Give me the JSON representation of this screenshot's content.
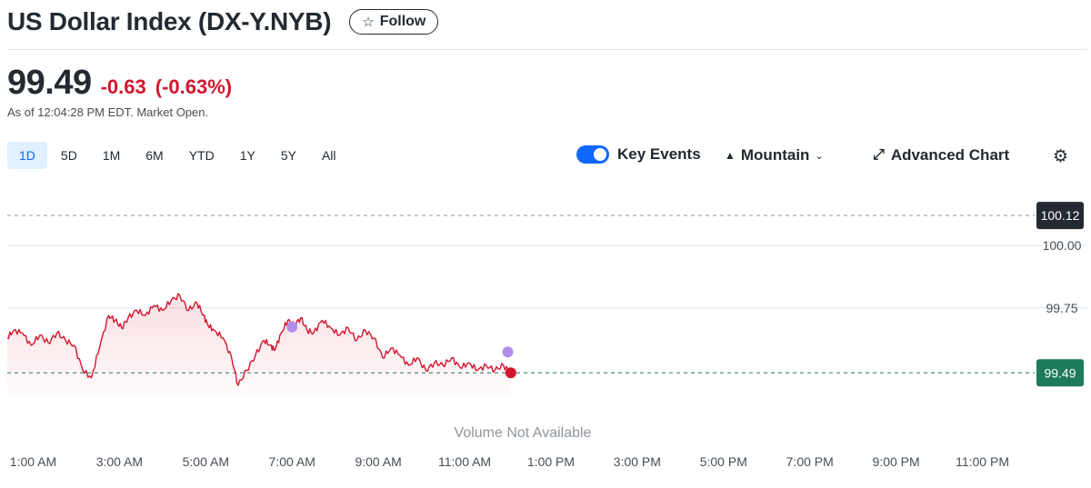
{
  "header": {
    "title": "US Dollar Index (DX-Y.NYB)",
    "follow_label": "Follow"
  },
  "quote": {
    "price": "99.49",
    "change": "-0.63",
    "change_pct": "(-0.63%)",
    "as_of": "As of 12:04:28 PM EDT. Market Open."
  },
  "range_tabs": [
    "1D",
    "5D",
    "1M",
    "6M",
    "YTD",
    "1Y",
    "5Y",
    "All"
  ],
  "active_range": "1D",
  "toolbar": {
    "key_events_label": "Key Events",
    "key_events_on": true,
    "chart_type_label": "Mountain",
    "advanced_chart_label": "Advanced Chart"
  },
  "colors": {
    "line": "#d3152e",
    "current_tag": "#1d7a5c",
    "high_tag": "#232a31",
    "event_dot": "#b28de8",
    "accent": "#0f69ff"
  },
  "chart_data": {
    "type": "area",
    "volume_note": "Volume Not Available",
    "x_tick_labels": [
      "1:00 AM",
      "3:00 AM",
      "5:00 AM",
      "7:00 AM",
      "9:00 AM",
      "11:00 AM",
      "1:00 PM",
      "3:00 PM",
      "5:00 PM",
      "7:00 PM",
      "9:00 PM",
      "11:00 PM"
    ],
    "x_tick_hours": [
      1,
      3,
      5,
      7,
      9,
      11,
      13,
      15,
      17,
      19,
      21,
      23
    ],
    "x_range_hours": [
      0.4,
      24
    ],
    "y_tick_labels": [
      "100.00",
      "99.75"
    ],
    "y_tick_values": [
      100.0,
      99.75
    ],
    "ylim": [
      99.4,
      100.175
    ],
    "reference_lines": [
      {
        "value": 100.12,
        "label": "100.12"
      },
      {
        "value": 99.49,
        "label": "99.49"
      }
    ],
    "series": [
      {
        "x": [
          0.4,
          0.55,
          0.75,
          0.95,
          1.15,
          1.35,
          1.55,
          1.75,
          1.95,
          2.15,
          2.35,
          2.55,
          2.75,
          2.9,
          3.05,
          3.2,
          3.4,
          3.6,
          3.8,
          4.0,
          4.2,
          4.4,
          4.6,
          4.8,
          4.95,
          5.05,
          5.2,
          5.4,
          5.6,
          5.75,
          5.95,
          6.15,
          6.35,
          6.5,
          6.6,
          6.75,
          6.9,
          7.05,
          7.2,
          7.35,
          7.5,
          7.7,
          7.9,
          8.1,
          8.3,
          8.5,
          8.7,
          8.9,
          9.1,
          9.3,
          9.5,
          9.7,
          9.9,
          10.1,
          10.3,
          10.5,
          10.7,
          10.9,
          11.1,
          11.3,
          11.5,
          11.7,
          11.9,
          12.07
        ],
        "y": [
          99.63,
          99.66,
          99.65,
          99.6,
          99.64,
          99.61,
          99.65,
          99.62,
          99.6,
          99.5,
          99.47,
          99.6,
          99.72,
          99.7,
          99.67,
          99.71,
          99.74,
          99.72,
          99.76,
          99.74,
          99.78,
          99.8,
          99.74,
          99.77,
          99.72,
          99.68,
          99.66,
          99.63,
          99.55,
          99.44,
          99.5,
          99.56,
          99.62,
          99.6,
          99.58,
          99.65,
          99.7,
          99.68,
          99.71,
          99.66,
          99.65,
          99.7,
          99.67,
          99.64,
          99.67,
          99.62,
          99.66,
          99.63,
          99.55,
          99.59,
          99.56,
          99.52,
          99.55,
          99.5,
          99.53,
          99.52,
          99.55,
          99.51,
          99.53,
          99.5,
          99.52,
          99.5,
          99.52,
          99.49
        ]
      }
    ],
    "key_event_points": [
      {
        "x": 7.0,
        "y": 99.63
      },
      {
        "x": 12.0,
        "y": 99.53
      }
    ],
    "current_point": {
      "x": 12.07,
      "y": 99.49
    }
  }
}
